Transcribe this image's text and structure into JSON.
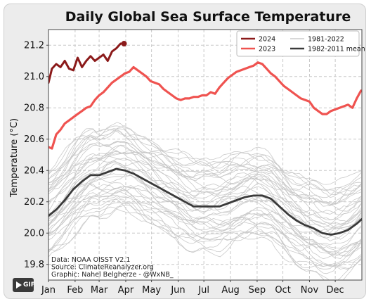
{
  "chart_data": {
    "type": "line",
    "title": "Daily Global Sea Surface Temperature",
    "xlabel": "",
    "ylabel": "Temperature (°C)",
    "xlim": [
      1,
      366
    ],
    "ylim": [
      19.7,
      21.3
    ],
    "yticks": [
      "19.8",
      "20.0",
      "20.2",
      "20.4",
      "20.6",
      "20.8",
      "21.0",
      "21.2"
    ],
    "yticks_clipped": "19.8",
    "months": [
      "Jan",
      "Feb",
      "Mar",
      "Apr",
      "May",
      "Jun",
      "Jul",
      "Aug",
      "Sep",
      "Oct",
      "Nov",
      "Dec"
    ],
    "grid": true,
    "legend_position": "top-right",
    "legend": [
      {
        "label": "2024",
        "color": "#8b1a1a"
      },
      {
        "label": "1981-2022",
        "color": "#cccccc"
      },
      {
        "label": "2023",
        "color": "#ef5350"
      },
      {
        "label": "1982-2011 mean",
        "color": "#3a3a3a"
      }
    ],
    "series": [
      {
        "name": "2024",
        "color": "#8b1a1a",
        "x": [
          1,
          5,
          10,
          15,
          20,
          25,
          30,
          35,
          40,
          45,
          50,
          55,
          60,
          65,
          70,
          75,
          80,
          85,
          89
        ],
        "y": [
          20.96,
          21.05,
          21.08,
          21.06,
          21.1,
          21.05,
          21.04,
          21.12,
          21.06,
          21.1,
          21.13,
          21.1,
          21.12,
          21.14,
          21.1,
          21.16,
          21.18,
          21.21,
          21.21
        ]
      },
      {
        "name": "2023",
        "color": "#ef5350",
        "x": [
          1,
          5,
          10,
          15,
          20,
          25,
          30,
          35,
          40,
          45,
          50,
          55,
          60,
          65,
          70,
          75,
          80,
          85,
          90,
          95,
          100,
          105,
          110,
          115,
          120,
          125,
          130,
          135,
          140,
          145,
          150,
          155,
          160,
          165,
          170,
          175,
          180,
          185,
          190,
          195,
          200,
          205,
          210,
          215,
          220,
          225,
          230,
          235,
          240,
          245,
          250,
          255,
          260,
          265,
          270,
          275,
          280,
          285,
          290,
          295,
          300,
          305,
          310,
          315,
          320,
          325,
          330,
          335,
          340,
          345,
          350,
          355,
          360,
          365
        ],
        "y": [
          20.55,
          20.54,
          20.63,
          20.66,
          20.7,
          20.72,
          20.74,
          20.76,
          20.78,
          20.8,
          20.81,
          20.85,
          20.88,
          20.9,
          20.93,
          20.96,
          20.98,
          21.0,
          21.02,
          21.03,
          21.06,
          21.04,
          21.02,
          21.0,
          20.97,
          20.96,
          20.95,
          20.92,
          20.9,
          20.88,
          20.86,
          20.85,
          20.86,
          20.86,
          20.87,
          20.87,
          20.88,
          20.88,
          20.9,
          20.89,
          20.93,
          20.96,
          20.99,
          21.01,
          21.03,
          21.04,
          21.05,
          21.06,
          21.07,
          21.09,
          21.08,
          21.05,
          21.02,
          21.0,
          20.97,
          20.94,
          20.92,
          20.9,
          20.88,
          20.86,
          20.85,
          20.84,
          20.8,
          20.78,
          20.76,
          20.76,
          20.78,
          20.79,
          20.8,
          20.81,
          20.82,
          20.8,
          20.86,
          20.91
        ]
      },
      {
        "name": "1982-2011 mean",
        "color": "#3a3a3a",
        "x": [
          1,
          10,
          20,
          30,
          40,
          50,
          60,
          70,
          80,
          90,
          100,
          110,
          120,
          130,
          140,
          150,
          160,
          170,
          180,
          190,
          200,
          210,
          220,
          230,
          240,
          250,
          260,
          270,
          280,
          290,
          300,
          310,
          320,
          330,
          340,
          350,
          360,
          366
        ],
        "y": [
          20.11,
          20.15,
          20.21,
          20.28,
          20.33,
          20.37,
          20.37,
          20.39,
          20.41,
          20.4,
          20.38,
          20.35,
          20.32,
          20.29,
          20.26,
          20.23,
          20.2,
          20.17,
          20.17,
          20.17,
          20.17,
          20.19,
          20.21,
          20.23,
          20.24,
          20.24,
          20.22,
          20.17,
          20.12,
          20.08,
          20.05,
          20.03,
          20.0,
          19.99,
          20.0,
          20.02,
          20.06,
          20.09
        ]
      }
    ],
    "background_series": {
      "name": "1981-2022",
      "color": "#cccccc",
      "description_count": 42
    },
    "credits": [
      "Data: NOAA OISST V2.1",
      "Source: ClimateReanalyzer.org",
      "Graphic: Nahel Belgherze - @WxNB_"
    ]
  },
  "badge": {
    "label": "GIF"
  }
}
